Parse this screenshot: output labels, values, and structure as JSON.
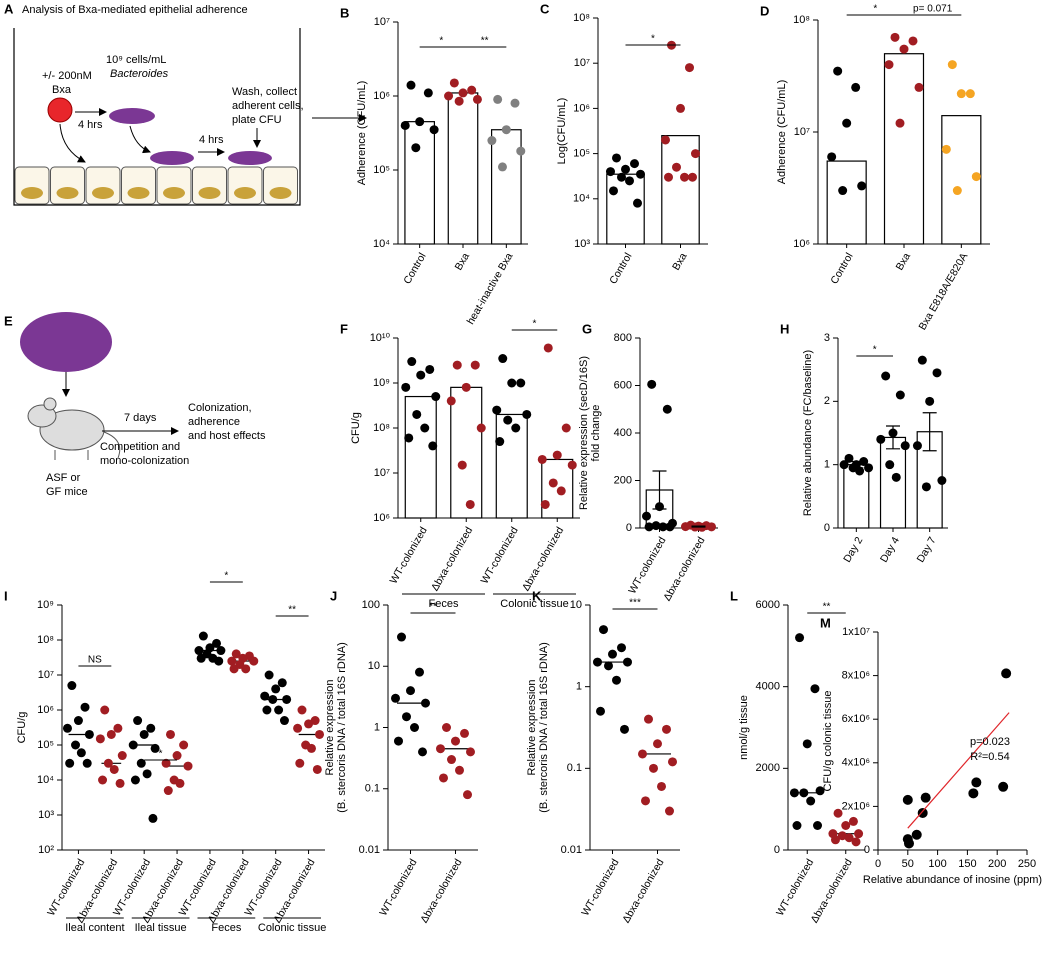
{
  "schematic_a": {
    "panel": "A",
    "title": "Analysis of Bxa-mediated epithelial adherence",
    "dose": "+/- 200nM",
    "compound": "Bxa",
    "step1": "4 hrs",
    "cells": "10⁹ cells/mL",
    "organism": "Bacteroides",
    "step2": "4 hrs",
    "wash": [
      "Wash, collect",
      "adherent cells,",
      "plate CFU"
    ]
  },
  "schematic_e": {
    "panel": "E",
    "duration": "7 days",
    "outcome": [
      "Colonization,",
      "adherence",
      "and host effects"
    ],
    "design": [
      "Competition and",
      "mono-colonization"
    ],
    "mice": [
      "ASF or",
      "GF mice"
    ]
  },
  "chart_data": [
    {
      "type": "bar",
      "panel": "B",
      "ylabel": "Adherence (CFU/mL)",
      "log": true,
      "ylim": [
        10000,
        10000000
      ],
      "yticks": [
        {
          "value": 10000,
          "label": "10⁴"
        },
        {
          "value": 100000,
          "label": "10⁵"
        },
        {
          "value": 1000000,
          "label": "10⁶"
        },
        {
          "value": 10000000,
          "label": "10⁷"
        }
      ],
      "categories": [
        "Control",
        "Bxa",
        "heat-inactive Bxa"
      ],
      "colors": [
        "#000000",
        "#a11d22",
        "#808080"
      ],
      "values": [
        450000,
        1100000,
        350000
      ],
      "points": [
        [
          1400000,
          1100000,
          450000,
          400000,
          350000,
          200000
        ],
        [
          1500000,
          1200000,
          1100000,
          1000000,
          900000,
          850000
        ],
        [
          900000,
          800000,
          350000,
          250000,
          180000,
          110000
        ]
      ],
      "annotations": [
        "*",
        "**"
      ]
    },
    {
      "type": "bar",
      "panel": "C",
      "ylabel": "Log(CFU/mL)",
      "log": true,
      "ylim": [
        1000,
        100000000
      ],
      "yticks": [
        {
          "value": 1000,
          "label": "10³"
        },
        {
          "value": 10000,
          "label": "10⁴"
        },
        {
          "value": 100000,
          "label": "10⁵"
        },
        {
          "value": 1000000,
          "label": "10⁶"
        },
        {
          "value": 10000000,
          "label": "10⁷"
        },
        {
          "value": 100000000,
          "label": "10⁸"
        }
      ],
      "categories": [
        "Control",
        "Bxa"
      ],
      "colors": [
        "#000000",
        "#a11d22"
      ],
      "values": [
        35000,
        250000
      ],
      "points": [
        [
          80000,
          60000,
          45000,
          40000,
          35000,
          30000,
          25000,
          15000,
          8000
        ],
        [
          25000000,
          8000000,
          1000000,
          200000,
          100000,
          50000,
          30000,
          30000,
          30000
        ]
      ],
      "annotations": [
        "*"
      ]
    },
    {
      "type": "bar",
      "panel": "D",
      "ylabel": "Adherence (CFU/mL)",
      "log": true,
      "ylim": [
        1000000,
        100000000
      ],
      "yticks": [
        {
          "value": 1000000,
          "label": "10⁶"
        },
        {
          "value": 10000000,
          "label": "10⁷"
        },
        {
          "value": 100000000,
          "label": "10⁸"
        }
      ],
      "categories": [
        "Control",
        "Bxa",
        "Bxa E818A/E820A"
      ],
      "colors": [
        "#000000",
        "#a11d22",
        "#f5a523"
      ],
      "values": [
        5500000,
        50000000,
        14000000
      ],
      "points": [
        [
          35000000,
          25000000,
          12000000,
          6000000,
          3300000,
          3000000
        ],
        [
          70000000,
          65000000,
          55000000,
          40000000,
          25000000,
          12000000
        ],
        [
          40000000,
          22000000,
          22000000,
          7000000,
          4000000,
          3000000
        ]
      ],
      "annotations": [
        "*",
        "p= 0.071"
      ]
    },
    {
      "type": "bar",
      "panel": "F",
      "ylabel": "CFU/g",
      "log": true,
      "ylim": [
        1000000,
        10000000000
      ],
      "yticks": [
        {
          "value": 1000000,
          "label": "10⁶"
        },
        {
          "value": 10000000,
          "label": "10⁷"
        },
        {
          "value": 100000000,
          "label": "10⁸"
        },
        {
          "value": 1000000000,
          "label": "10⁹"
        },
        {
          "value": 10000000000,
          "label": "10¹⁰"
        }
      ],
      "categories": [
        "WT-colonized",
        "Δbxa-colonized",
        "WT-colonized",
        "Δbxa-colonized"
      ],
      "colors": [
        "#000000",
        "#a11d22",
        "#000000",
        "#a11d22"
      ],
      "values": [
        500000000,
        800000000,
        200000000,
        20000000
      ],
      "points": [
        [
          3000000000,
          2000000000,
          1500000000,
          800000000,
          500000000,
          200000000,
          100000000,
          60000000,
          40000000
        ],
        [
          2500000000,
          2500000000,
          800000000,
          400000000,
          100000000,
          15000000,
          2000000
        ],
        [
          3500000000,
          1000000000,
          1000000000,
          250000000,
          200000000,
          150000000,
          100000000,
          50000000
        ],
        [
          6000000000,
          100000000,
          25000000,
          20000000,
          15000000,
          6000000,
          4000000,
          2000000
        ]
      ],
      "groups": [
        "Feces",
        "Colonic tissue"
      ],
      "annotations": [
        "*"
      ]
    },
    {
      "type": "bar",
      "panel": "G",
      "ylabel": [
        "Relative expression (secD/16S)",
        "fold change"
      ],
      "log": false,
      "ylim": [
        0,
        800
      ],
      "yticks": [
        0,
        200,
        400,
        600,
        800
      ],
      "categories": [
        "WT-colonized",
        "Δbxa-colonized"
      ],
      "colors": [
        "#000000",
        "#a11d22"
      ],
      "values": [
        160,
        6
      ],
      "errors": [
        80,
        2
      ],
      "points": [
        [
          605,
          500,
          90,
          50,
          20,
          10,
          5,
          5,
          5
        ],
        [
          12,
          10,
          8,
          6,
          5,
          4,
          3
        ]
      ],
      "annotations": []
    },
    {
      "type": "bar",
      "panel": "H",
      "ylabel": "Relative abundance (FC/baseline)",
      "log": false,
      "ylim": [
        0,
        3
      ],
      "yticks": [
        0,
        1,
        2,
        3
      ],
      "categories": [
        "Day 2",
        "Day 4",
        "Day 7"
      ],
      "colors": [
        "#000000",
        "#000000",
        "#000000"
      ],
      "values": [
        1.0,
        1.43,
        1.52
      ],
      "errors": [
        0.05,
        0.18,
        0.3
      ],
      "points": [
        [
          1.1,
          1.05,
          1.0,
          1.0,
          0.95,
          0.95,
          0.9
        ],
        [
          2.4,
          2.1,
          1.5,
          1.4,
          1.3,
          1.0,
          0.8
        ],
        [
          2.65,
          2.45,
          2.0,
          1.3,
          0.75,
          0.65
        ]
      ],
      "annotations": [
        "*"
      ]
    },
    {
      "type": "dot",
      "panel": "I",
      "ylabel": "CFU/g",
      "log": true,
      "ylim": [
        100,
        1000000000
      ],
      "yticks": [
        {
          "value": 100,
          "label": "10²"
        },
        {
          "value": 1000,
          "label": "10³"
        },
        {
          "value": 10000,
          "label": "10⁴"
        },
        {
          "value": 100000,
          "label": "10⁵"
        },
        {
          "value": 1000000,
          "label": "10⁶"
        },
        {
          "value": 10000000,
          "label": "10⁷"
        },
        {
          "value": 100000000,
          "label": "10⁸"
        },
        {
          "value": 1000000000,
          "label": "10⁹"
        }
      ],
      "categories": [
        "WT-colonized",
        "Δbxa-colonized",
        "WT-colonized",
        "Δbxa-colonized",
        "WT-colonized",
        "Δbxa-colonized",
        "WT-colonized",
        "Δbxa-colonized"
      ],
      "colors": [
        "#000000",
        "#a11d22",
        "#000000",
        "#a11d22",
        "#000000",
        "#a11d22",
        "#000000",
        "#a11d22"
      ],
      "values": [
        200000,
        30000,
        100000,
        25000,
        50000000,
        25000000,
        2000000,
        200000
      ],
      "points": [
        [
          5000000,
          1200000,
          500000,
          300000,
          200000,
          100000,
          60000,
          30000,
          30000
        ],
        [
          1000000,
          300000,
          200000,
          150000,
          50000,
          30000,
          20000,
          10000,
          8000
        ],
        [
          500000,
          300000,
          200000,
          100000,
          80000,
          30000,
          15000,
          10000,
          800
        ],
        [
          200000,
          100000,
          50000,
          30000,
          25000,
          10000,
          8000,
          5000
        ],
        [
          130000000,
          80000000,
          60000000,
          50000000,
          50000000,
          40000000,
          30000000,
          30000000,
          25000000
        ],
        [
          40000000,
          35000000,
          30000000,
          25000000,
          25000000,
          20000000,
          15000000,
          15000000
        ],
        [
          10000000,
          6000000,
          4000000,
          2500000,
          2000000,
          2000000,
          1000000,
          1000000,
          500000
        ],
        [
          1000000,
          500000,
          400000,
          300000,
          200000,
          100000,
          80000,
          30000,
          20000
        ]
      ],
      "groups": [
        "Ileal content",
        "Ileal tissue",
        "Feces",
        "Colonic tissue"
      ],
      "annotations": [
        "NS",
        "*",
        "*",
        "**"
      ]
    },
    {
      "type": "dot",
      "panel": "J",
      "ylabel": [
        "Relative expression",
        "(B. stercoris DNA / total 16S rDNA)"
      ],
      "log": true,
      "ylim": [
        0.01,
        100
      ],
      "yticks": [
        0.01,
        0.1,
        1,
        10,
        100
      ],
      "categories": [
        "WT-colonized",
        "Δbxa-colonized"
      ],
      "colors": [
        "#000000",
        "#a11d22"
      ],
      "values": [
        2.5,
        0.45
      ],
      "points": [
        [
          30,
          8,
          4,
          3,
          2.5,
          1.5,
          1,
          0.6,
          0.4
        ],
        [
          1,
          0.8,
          0.6,
          0.45,
          0.4,
          0.3,
          0.2,
          0.15,
          0.08
        ]
      ],
      "annotations": [
        "**"
      ]
    },
    {
      "type": "dot",
      "panel": "K",
      "ylabel": [
        "Relative expression",
        "(B. stercoris DNA / total 16S rDNA)"
      ],
      "log": true,
      "ylim": [
        0.01,
        10
      ],
      "yticks": [
        0.01,
        0.1,
        1,
        10
      ],
      "categories": [
        "WT-colonized",
        "Δbxa-colonized"
      ],
      "colors": [
        "#000000",
        "#a11d22"
      ],
      "values": [
        2,
        0.15
      ],
      "points": [
        [
          5,
          3,
          2.5,
          2,
          2,
          1.8,
          1.2,
          0.5,
          0.3
        ],
        [
          0.4,
          0.3,
          0.2,
          0.15,
          0.12,
          0.1,
          0.06,
          0.04,
          0.03
        ]
      ],
      "annotations": [
        "***"
      ]
    },
    {
      "type": "dot",
      "panel": "L",
      "ylabel": "nmol/g tissue",
      "log": false,
      "ylim": [
        0,
        6000
      ],
      "yticks": [
        0,
        2000,
        4000,
        6000
      ],
      "categories": [
        "WT-colonized",
        "Δbxa-colonized"
      ],
      "colors": [
        "#000000",
        "#a11d22"
      ],
      "values": [
        1400,
        400
      ],
      "points": [
        [
          5200,
          3950,
          2600,
          1400,
          1450,
          1400,
          1200,
          600,
          600
        ],
        [
          900,
          700,
          600,
          400,
          400,
          350,
          300,
          250,
          200
        ]
      ],
      "annotations": [
        "**"
      ]
    },
    {
      "type": "scatter",
      "panel": "M",
      "ylabel": "CFU/g colonic tissue",
      "xlabel": "Relative abundance of inosine (ppm)",
      "log": false,
      "xlim": [
        0,
        250
      ],
      "xticks": [
        0,
        50,
        100,
        150,
        200,
        250
      ],
      "ylim": [
        0,
        10000000
      ],
      "yticks": [
        0,
        {
          "value": 2000000,
          "label": "2x10⁶"
        },
        {
          "value": 4000000,
          "label": "4x10⁶"
        },
        {
          "value": 6000000,
          "label": "6x10⁶"
        },
        {
          "value": 8000000,
          "label": "8x10⁶"
        },
        {
          "value": 10000000,
          "label": "1x10⁷"
        }
      ],
      "x": [
        50,
        50,
        52,
        65,
        75,
        80,
        160,
        165,
        210,
        215
      ],
      "y": [
        2300000,
        500000,
        300000,
        700000,
        1700000,
        2400000,
        2600000,
        3100000,
        2900000,
        8100000
      ],
      "color": "#000000",
      "fit": {
        "color": "#e0262b",
        "x": [
          50,
          220
        ],
        "y": [
          1000000,
          6300000
        ]
      },
      "annotations": [
        "p=0.023",
        "R²=0.54"
      ]
    }
  ]
}
